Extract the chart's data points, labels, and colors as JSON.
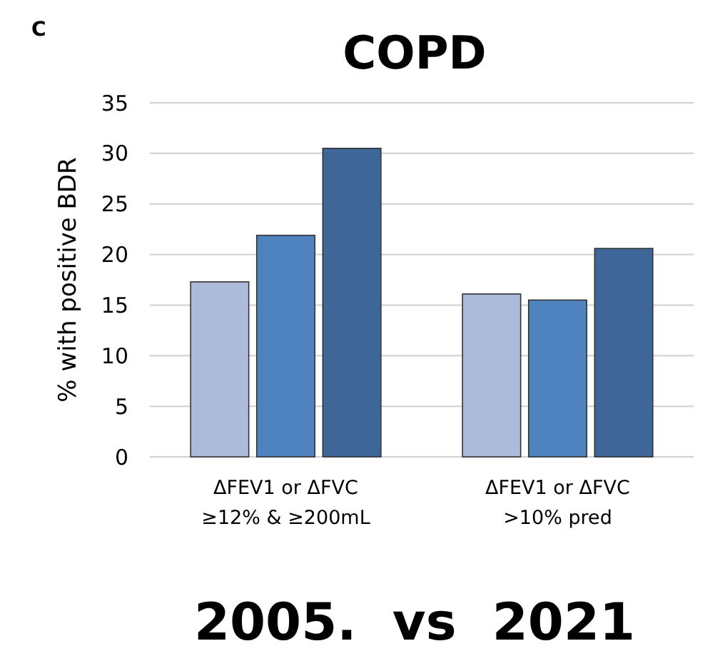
{
  "chart_data": {
    "type": "bar",
    "title": "COPD",
    "ylabel": "% with positive BDR",
    "categories": [
      "ΔFEV1 or ΔFVC\n≥12% & ≥200mL",
      "ΔFEV1 or ΔFVC\n>10% pred"
    ],
    "series": [
      {
        "color": "#abbbd9",
        "values": [
          17.3,
          16.1
        ]
      },
      {
        "color": "#4f83c0",
        "values": [
          21.9,
          15.5
        ]
      },
      {
        "color": "#3f6699",
        "values": [
          30.5,
          20.6
        ]
      }
    ],
    "ylim": [
      0,
      35
    ],
    "yticks": [
      0,
      5,
      10,
      15,
      20,
      25,
      30,
      35
    ],
    "grid": "y",
    "annotations": [
      "C",
      "2005.  vs  2021"
    ]
  }
}
